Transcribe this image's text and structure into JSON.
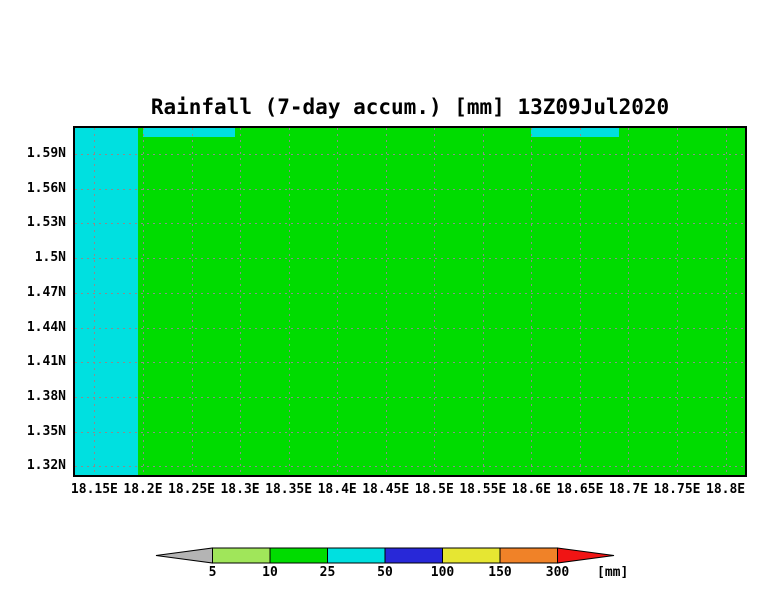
{
  "chart_data": {
    "type": "heatmap",
    "title": "Rainfall (7-day accum.) [mm] 13Z09Jul2020",
    "x_ticks": [
      "18.15E",
      "18.2E",
      "18.25E",
      "18.3E",
      "18.35E",
      "18.4E",
      "18.45E",
      "18.5E",
      "18.55E",
      "18.6E",
      "18.65E",
      "18.7E",
      "18.75E",
      "18.8E"
    ],
    "x_tick_values": [
      18.15,
      18.2,
      18.25,
      18.3,
      18.35,
      18.4,
      18.45,
      18.5,
      18.55,
      18.6,
      18.65,
      18.7,
      18.75,
      18.8
    ],
    "x_range": [
      18.13,
      18.82
    ],
    "y_ticks": [
      "1.59N",
      "1.56N",
      "1.53N",
      "1.5N",
      "1.47N",
      "1.44N",
      "1.41N",
      "1.38N",
      "1.35N",
      "1.32N"
    ],
    "y_tick_values": [
      1.59,
      1.56,
      1.53,
      1.5,
      1.47,
      1.44,
      1.41,
      1.38,
      1.35,
      1.32
    ],
    "y_range": [
      1.3125,
      1.6125
    ],
    "grid": true,
    "colors": {
      "background": "#ffffff",
      "frame": "#000000",
      "grid": "#8c8c8c",
      "text": "#000000"
    },
    "regions": [
      {
        "name": "background-fill",
        "value_mm": "10-25",
        "color": "#00dc00",
        "lon": [
          18.13,
          18.82
        ],
        "lat": [
          1.3125,
          1.6125
        ]
      },
      {
        "name": "west-strip",
        "value_mm": "25-50",
        "color": "#00e0e0",
        "lon": [
          18.13,
          18.195
        ],
        "lat": [
          1.3125,
          1.6125
        ]
      },
      {
        "name": "north-strip-west",
        "value_mm": "25-50",
        "color": "#00e0e0",
        "lon": [
          18.2,
          18.295
        ],
        "lat": [
          1.605,
          1.6125
        ]
      },
      {
        "name": "north-strip-east",
        "value_mm": "25-50",
        "color": "#00e0e0",
        "lon": [
          18.6,
          18.69
        ],
        "lat": [
          1.605,
          1.6125
        ]
      }
    ],
    "legend": {
      "tick_labels": [
        "5",
        "10",
        "25",
        "50",
        "100",
        "150",
        "300"
      ],
      "unit_label": "[mm]",
      "segments": [
        {
          "name": "gray",
          "range_mm": "<5",
          "color": "#b4b4b4",
          "shape": "left-arrow"
        },
        {
          "name": "light-green",
          "range_mm": "5-10",
          "color": "#a0e65a",
          "shape": "rect"
        },
        {
          "name": "green",
          "range_mm": "10-25",
          "color": "#00dc00",
          "shape": "rect"
        },
        {
          "name": "cyan",
          "range_mm": "25-50",
          "color": "#00e0e0",
          "shape": "rect"
        },
        {
          "name": "blue",
          "range_mm": "50-100",
          "color": "#2828d8",
          "shape": "rect"
        },
        {
          "name": "yellow",
          "range_mm": "100-150",
          "color": "#e6e632",
          "shape": "rect"
        },
        {
          "name": "orange",
          "range_mm": "150-300",
          "color": "#f08228",
          "shape": "rect"
        },
        {
          "name": "red",
          "range_mm": ">300",
          "color": "#f01414",
          "shape": "right-arrow"
        }
      ]
    }
  }
}
